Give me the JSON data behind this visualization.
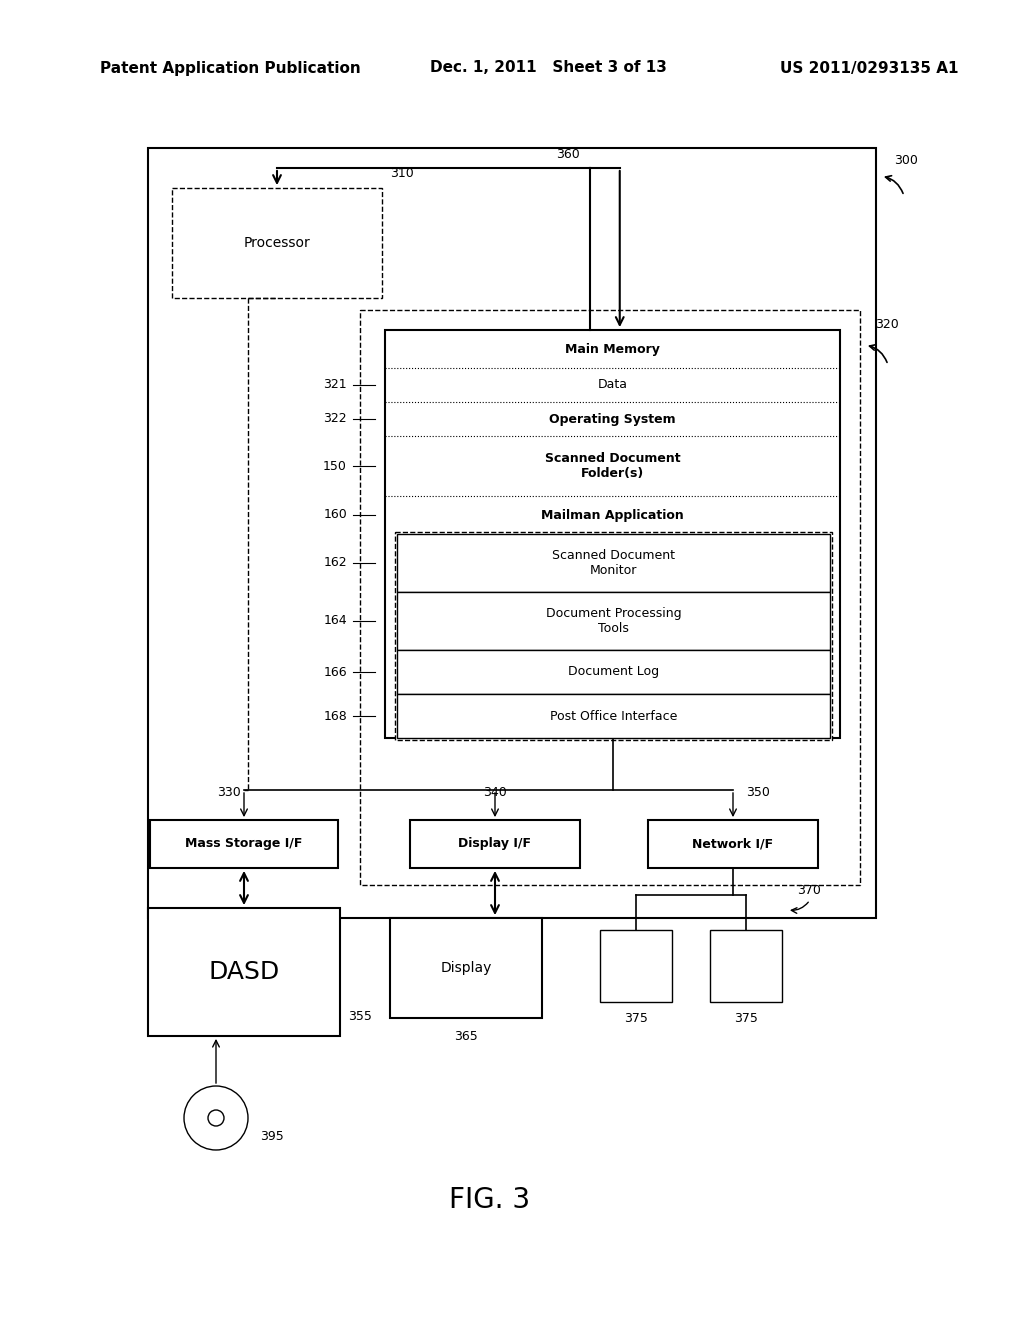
{
  "bg_color": "#ffffff",
  "header_left": "Patent Application Publication",
  "header_mid": "Dec. 1, 2011   Sheet 3 of 13",
  "header_right": "US 2011/0293135 A1",
  "fig_label": "FIG. 3"
}
